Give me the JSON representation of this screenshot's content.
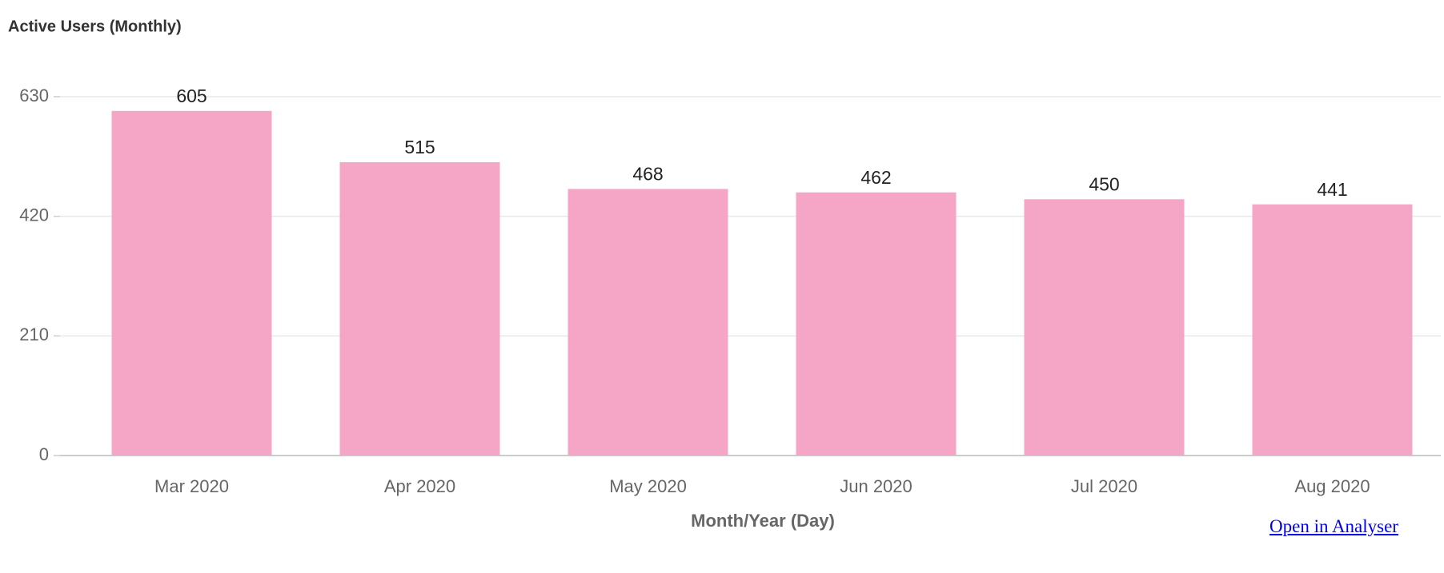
{
  "chart_data": {
    "type": "bar",
    "title": "Active Users (Monthly)",
    "x_label": "Month/Year (Day)",
    "categories": [
      "Mar 2020",
      "Apr 2020",
      "May 2020",
      "Jun 2020",
      "Jul 2020",
      "Aug 2020"
    ],
    "values": [
      605,
      515,
      468,
      462,
      450,
      441
    ],
    "color": "#f5a6c6",
    "ylim": [
      0,
      630
    ],
    "yticks": [
      0,
      210,
      420,
      630
    ],
    "grid": true
  },
  "link": {
    "text": "Open in Analyser"
  }
}
